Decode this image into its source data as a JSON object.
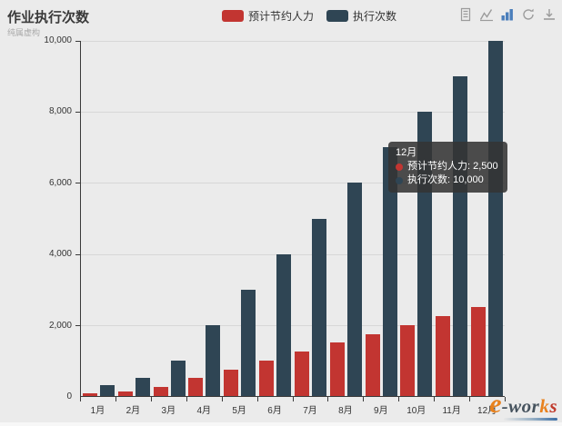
{
  "page": {
    "background": "#ebebeb"
  },
  "header": {
    "title": "作业执行次数",
    "subtitle": "纯属虚构"
  },
  "legend": {
    "items": [
      {
        "label": "预计节约人力",
        "color": "#c23531"
      },
      {
        "label": "执行次数",
        "color": "#2f4554"
      }
    ]
  },
  "toolbox": {
    "idle_color": "#9b9b9b",
    "active_color": "#4a7ebb",
    "icons": [
      "data-view-icon",
      "line-chart-icon",
      "bar-chart-icon",
      "restore-icon",
      "save-image-icon"
    ],
    "active_icon": "bar-chart-icon"
  },
  "chart_data": {
    "type": "bar",
    "title": "作业执行次数",
    "categories": [
      "1月",
      "2月",
      "3月",
      "4月",
      "5月",
      "6月",
      "7月",
      "8月",
      "9月",
      "10月",
      "11月",
      "12月"
    ],
    "series": [
      {
        "name": "预计节约人力",
        "color": "#c23531",
        "values": [
          75,
          125,
          250,
          500,
          750,
          1000,
          1250,
          1500,
          1750,
          2000,
          2250,
          2500
        ]
      },
      {
        "name": "执行次数",
        "color": "#2f4554",
        "values": [
          300,
          500,
          1000,
          2000,
          3000,
          4000,
          5000,
          6000,
          7000,
          8000,
          9000,
          10000
        ]
      }
    ],
    "xlabel": "",
    "ylabel": "",
    "ylim": [
      0,
      10000
    ],
    "yticks": [
      0,
      2000,
      4000,
      6000,
      8000,
      10000
    ],
    "ytick_labels": [
      "0",
      "2,000",
      "4,000",
      "6,000",
      "8,000",
      "10,000"
    ],
    "grid": true,
    "legend_position": "top-center"
  },
  "tooltip": {
    "title": "12月",
    "rows": [
      {
        "marker_color": "#c23531",
        "text": "预计节约人力: 2,500"
      },
      {
        "marker_color": "#2f4554",
        "text": "执行次数: 10,000"
      }
    ]
  },
  "watermark": {
    "e": "e",
    "wor": "-wor",
    "k": "k",
    "s": "s"
  }
}
